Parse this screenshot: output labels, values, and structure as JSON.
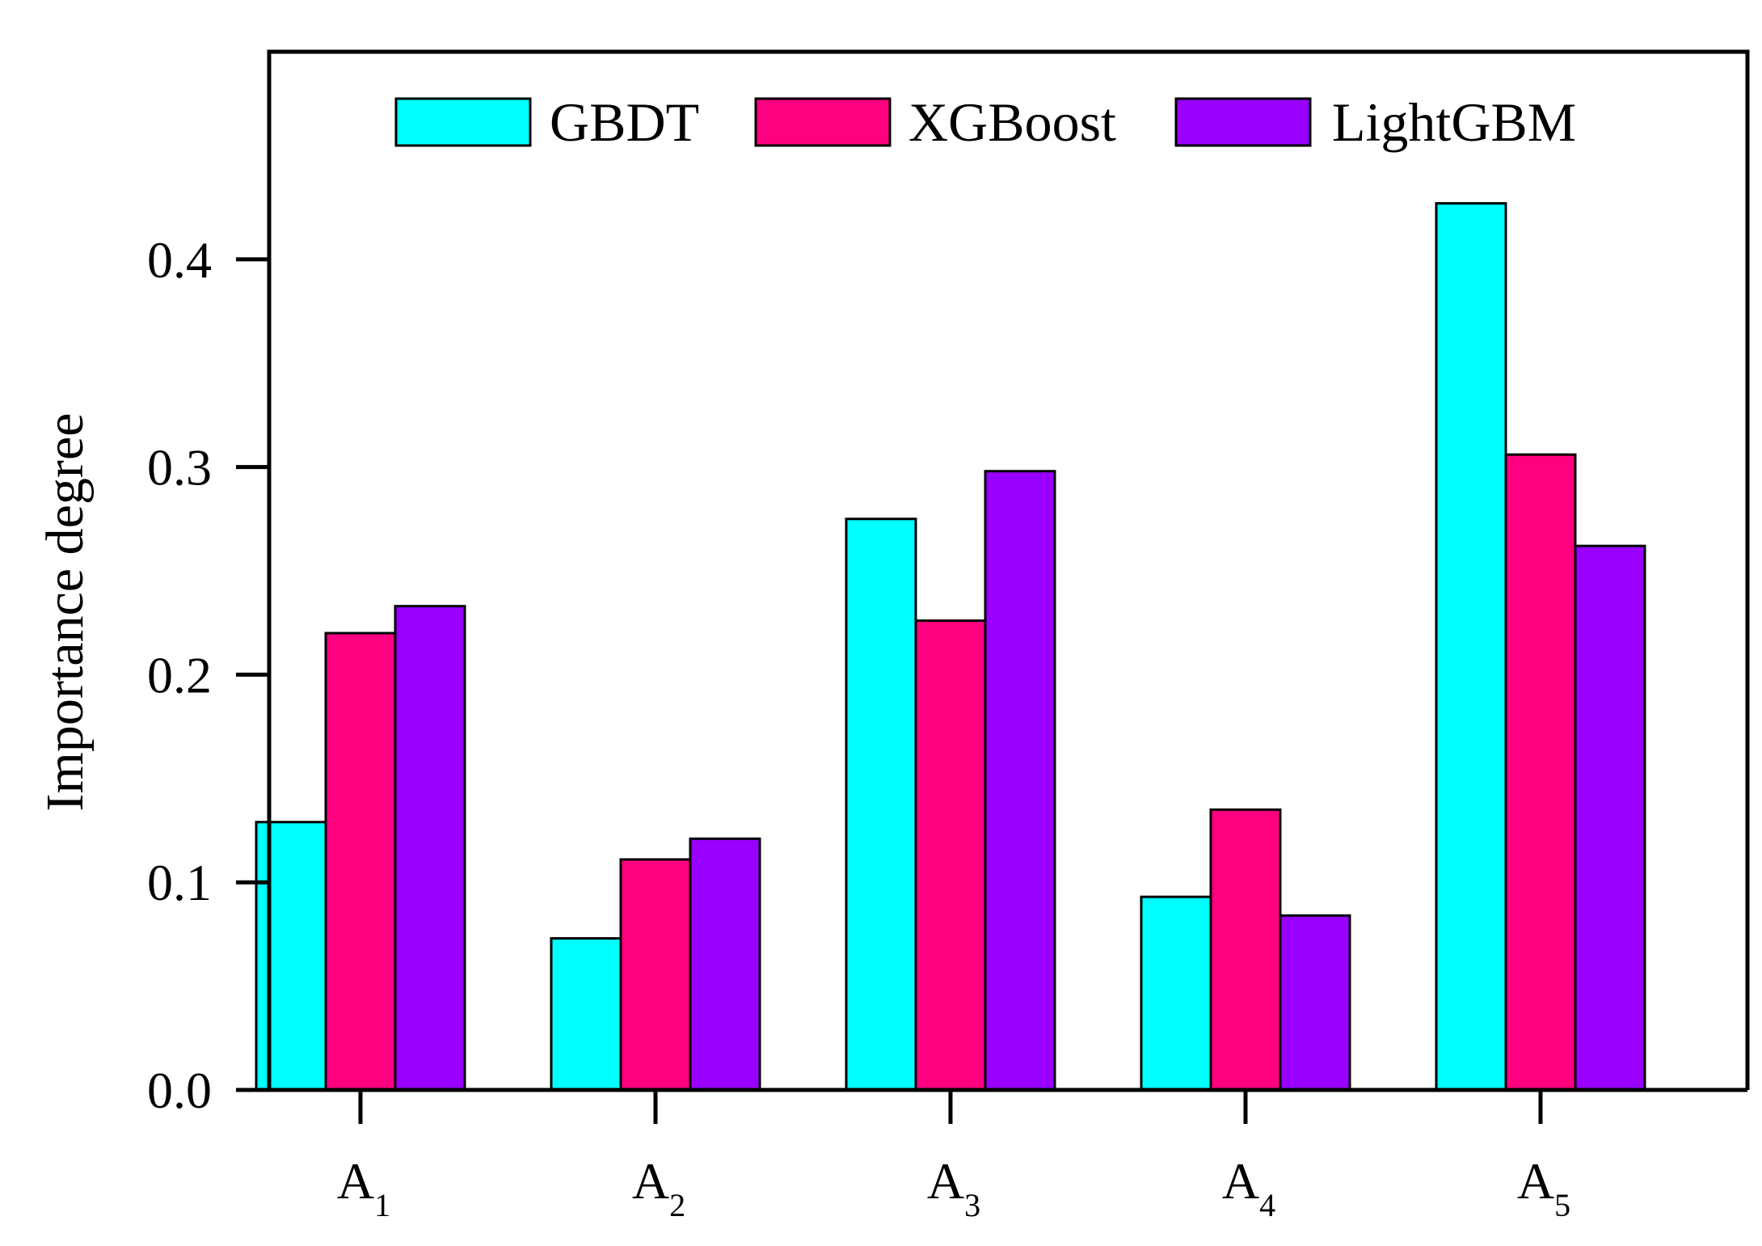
{
  "chart_data": {
    "type": "bar",
    "title": "",
    "xlabel": "",
    "ylabel": "Importance degree",
    "categories": [
      {
        "base": "A",
        "sub": "1"
      },
      {
        "base": "A",
        "sub": "2"
      },
      {
        "base": "A",
        "sub": "3"
      },
      {
        "base": "A",
        "sub": "4"
      },
      {
        "base": "A",
        "sub": "5"
      }
    ],
    "series": [
      {
        "name": "GBDT",
        "color": "#00FFFF",
        "values": [
          0.129,
          0.073,
          0.275,
          0.093,
          0.427
        ]
      },
      {
        "name": "XGBoost",
        "color": "#FF0080",
        "values": [
          0.22,
          0.111,
          0.226,
          0.135,
          0.306
        ]
      },
      {
        "name": "LightGBM",
        "color": "#9900FF",
        "values": [
          0.233,
          0.121,
          0.298,
          0.084,
          0.262
        ]
      }
    ],
    "ylim": [
      0.0,
      0.5
    ],
    "yticks": [
      "0.0",
      "0.1",
      "0.2",
      "0.3",
      "0.4"
    ],
    "grid": false,
    "legend_position": "top"
  }
}
